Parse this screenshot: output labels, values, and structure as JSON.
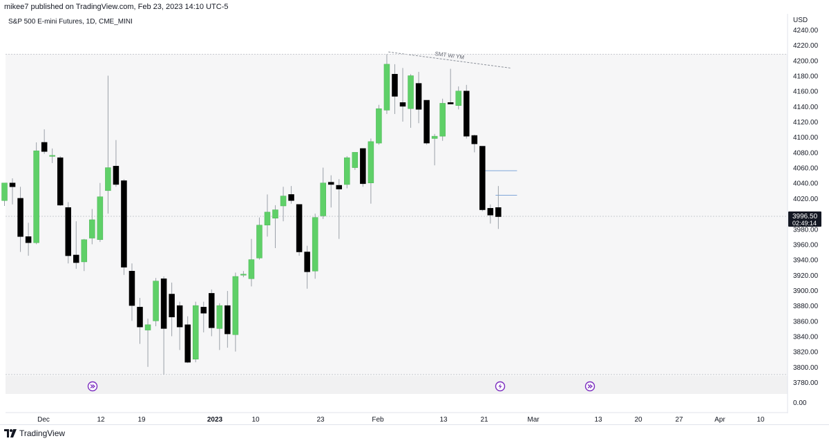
{
  "header": {
    "published_text": "mikee7 published on TradingView.com, Feb 23, 2023 14:10 UTC-5",
    "symbol_text": "S&P 500 E-mini Futures, 1D, CME_MINI"
  },
  "price_axis": {
    "currency": "USD"
  },
  "footer": {
    "brand": "TradingView"
  },
  "colors": {
    "up": "#5fd068",
    "down": "#000000",
    "wick": "#9aa0a8",
    "grid_dotted": "#c7c9cf",
    "event_icon": "#7b2cbf",
    "price_label_bg": "#131722",
    "price_label_text": "#ffffff"
  },
  "chart_data": {
    "type": "candlestick",
    "title": "S&P 500 E-mini Futures, 1D, CME_MINI",
    "ylabel": "USD",
    "ylim": [
      3775,
      4250
    ],
    "y_ticks": [
      4240,
      4220,
      4200,
      4180,
      4160,
      4140,
      4120,
      4100,
      4080,
      4060,
      4040,
      4020,
      3980,
      3960,
      3940,
      3920,
      3900,
      3880,
      3860,
      3840,
      3820,
      3800,
      3780
    ],
    "lower_pane_tick": "0.00",
    "x_ticks": [
      "Dec",
      "12",
      "19",
      "2023",
      "10",
      "23",
      "Feb",
      "13",
      "21",
      "Mar",
      "13",
      "20",
      "27",
      "Apr",
      "10"
    ],
    "last_price": {
      "price": "3996.50",
      "countdown": "02:49:14",
      "value": 3996.5
    },
    "candles": [
      {
        "o": 4017,
        "h": 4036,
        "l": 4010,
        "c": 4040
      },
      {
        "o": 4040,
        "h": 4046,
        "l": 4012,
        "c": 4035
      },
      {
        "o": 4020,
        "h": 4035,
        "l": 3950,
        "c": 3970
      },
      {
        "o": 3970,
        "h": 3988,
        "l": 3945,
        "c": 3962
      },
      {
        "o": 3962,
        "h": 4093,
        "l": 3960,
        "c": 4082
      },
      {
        "o": 4093,
        "h": 4110,
        "l": 4078,
        "c": 4081
      },
      {
        "o": 4075,
        "h": 4085,
        "l": 4066,
        "c": 4076
      },
      {
        "o": 4073,
        "h": 4075,
        "l": 4010,
        "c": 4011
      },
      {
        "o": 4008,
        "h": 4015,
        "l": 3935,
        "c": 3945
      },
      {
        "o": 3946,
        "h": 3990,
        "l": 3928,
        "c": 3936
      },
      {
        "o": 3937,
        "h": 3967,
        "l": 3925,
        "c": 3966
      },
      {
        "o": 3968,
        "h": 4006,
        "l": 3960,
        "c": 3992
      },
      {
        "o": 3966,
        "h": 4040,
        "l": 3963,
        "c": 4022
      },
      {
        "o": 4030,
        "h": 4180,
        "l": 4000,
        "c": 4060
      },
      {
        "o": 4062,
        "h": 4096,
        "l": 4035,
        "c": 4038
      },
      {
        "o": 4043,
        "h": 4045,
        "l": 3920,
        "c": 3930
      },
      {
        "o": 3925,
        "h": 3935,
        "l": 3860,
        "c": 3880
      },
      {
        "o": 3878,
        "h": 3890,
        "l": 3830,
        "c": 3852
      },
      {
        "o": 3848,
        "h": 3863,
        "l": 3800,
        "c": 3855
      },
      {
        "o": 3860,
        "h": 3916,
        "l": 3853,
        "c": 3912
      },
      {
        "o": 3915,
        "h": 3918,
        "l": 3790,
        "c": 3850
      },
      {
        "o": 3895,
        "h": 3910,
        "l": 3840,
        "c": 3865
      },
      {
        "o": 3880,
        "h": 3885,
        "l": 3822,
        "c": 3852
      },
      {
        "o": 3855,
        "h": 3866,
        "l": 3805,
        "c": 3806
      },
      {
        "o": 3810,
        "h": 3885,
        "l": 3806,
        "c": 3880
      },
      {
        "o": 3878,
        "h": 3885,
        "l": 3845,
        "c": 3870
      },
      {
        "o": 3896,
        "h": 3901,
        "l": 3840,
        "c": 3851
      },
      {
        "o": 3850,
        "h": 3883,
        "l": 3822,
        "c": 3880
      },
      {
        "o": 3880,
        "h": 3899,
        "l": 3825,
        "c": 3843
      },
      {
        "o": 3842,
        "h": 3923,
        "l": 3820,
        "c": 3918
      },
      {
        "o": 3920,
        "h": 3925,
        "l": 3917,
        "c": 3921
      },
      {
        "o": 3915,
        "h": 3967,
        "l": 3905,
        "c": 3940
      },
      {
        "o": 3942,
        "h": 3995,
        "l": 3940,
        "c": 3985
      },
      {
        "o": 3985,
        "h": 4025,
        "l": 3970,
        "c": 4002
      },
      {
        "o": 3994,
        "h": 4011,
        "l": 3955,
        "c": 4005
      },
      {
        "o": 4010,
        "h": 4035,
        "l": 3990,
        "c": 4023
      },
      {
        "o": 4025,
        "h": 4036,
        "l": 4013,
        "c": 4017
      },
      {
        "o": 4012,
        "h": 4012,
        "l": 3945,
        "c": 3950
      },
      {
        "o": 3950,
        "h": 3958,
        "l": 3902,
        "c": 3924
      },
      {
        "o": 3925,
        "h": 4000,
        "l": 3915,
        "c": 3995
      },
      {
        "o": 3997,
        "h": 4060,
        "l": 3993,
        "c": 4040
      },
      {
        "o": 4041,
        "h": 4050,
        "l": 4008,
        "c": 4038
      },
      {
        "o": 4037,
        "h": 4045,
        "l": 3967,
        "c": 4032
      },
      {
        "o": 4038,
        "h": 4075,
        "l": 4033,
        "c": 4073
      },
      {
        "o": 4060,
        "h": 4080,
        "l": 4057,
        "c": 4080
      },
      {
        "o": 4085,
        "h": 4083,
        "l": 4035,
        "c": 4039
      },
      {
        "o": 4040,
        "h": 4098,
        "l": 4013,
        "c": 4094
      },
      {
        "o": 4092,
        "h": 4142,
        "l": 4090,
        "c": 4137
      },
      {
        "o": 4135,
        "h": 4208,
        "l": 4130,
        "c": 4195
      },
      {
        "o": 4182,
        "h": 4195,
        "l": 4130,
        "c": 4153
      },
      {
        "o": 4145,
        "h": 4190,
        "l": 4120,
        "c": 4140
      },
      {
        "o": 4137,
        "h": 4182,
        "l": 4112,
        "c": 4180
      },
      {
        "o": 4170,
        "h": 4185,
        "l": 4118,
        "c": 4136
      },
      {
        "o": 4148,
        "h": 4147,
        "l": 4090,
        "c": 4092
      },
      {
        "o": 4098,
        "h": 4104,
        "l": 4063,
        "c": 4101
      },
      {
        "o": 4101,
        "h": 4150,
        "l": 4095,
        "c": 4144
      },
      {
        "o": 4145,
        "h": 4189,
        "l": 4146,
        "c": 4143
      },
      {
        "o": 4141,
        "h": 4166,
        "l": 4136,
        "c": 4160
      },
      {
        "o": 4160,
        "h": 4168,
        "l": 4098,
        "c": 4101
      },
      {
        "o": 4102,
        "h": 4103,
        "l": 4080,
        "c": 4091
      },
      {
        "o": 4088,
        "h": 4088,
        "l": 4003,
        "c": 4005
      },
      {
        "o": 4007,
        "h": 4012,
        "l": 3987,
        "c": 3998
      },
      {
        "o": 4008,
        "h": 4036,
        "l": 3980,
        "c": 3996
      }
    ],
    "annotations": [
      {
        "type": "dashed-trendline",
        "label": "SMT W/ YM",
        "from": {
          "index": 48.2,
          "price": 4211
        },
        "to": {
          "index": 63.5,
          "price": 4190
        }
      },
      {
        "type": "dotted-hline",
        "price": 4208
      },
      {
        "type": "dotted-hline",
        "price": 3996.5
      },
      {
        "type": "dotted-hline",
        "price": 3790
      },
      {
        "type": "hline-segment",
        "price": 4056,
        "from_index": 60,
        "to_index": 64
      },
      {
        "type": "hline-segment",
        "price": 4024,
        "from_index": 62,
        "to_index": 64
      }
    ],
    "events": [
      {
        "icon": "forward-arrow-icon",
        "date": "Dec 13"
      },
      {
        "icon": "lightning-icon",
        "date": "Feb 22"
      },
      {
        "icon": "forward-arrow-icon",
        "date": "Mar 3"
      }
    ]
  }
}
